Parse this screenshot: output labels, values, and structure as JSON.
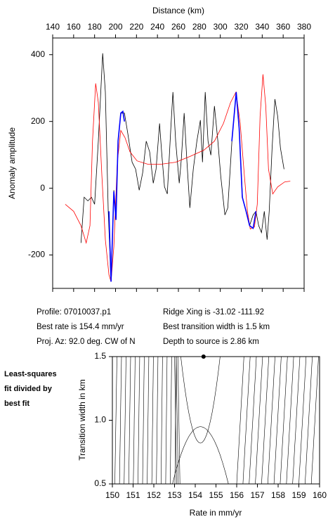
{
  "chart_data": [
    {
      "type": "line",
      "xlabel": "Distance (km)",
      "ylabel": "Anomaly amplitude",
      "xlim": [
        140,
        380
      ],
      "xticks": [
        140,
        160,
        180,
        200,
        220,
        240,
        260,
        280,
        300,
        320,
        340,
        360,
        380
      ],
      "ylim": [
        -300,
        450
      ],
      "yticks": [
        -200,
        0,
        200,
        400
      ],
      "series": [
        {
          "color": "#000000",
          "x": [
            167,
            170,
            173.6,
            177,
            180,
            183.6,
            187.7,
            190.3,
            193,
            195.7,
            198.4,
            200.4,
            202.4,
            205,
            208.5,
            211.8,
            215.8,
            219.2,
            222.6,
            225.9,
            229.3,
            232.6,
            236,
            238.7,
            242,
            244,
            246.7,
            249.4,
            252.8,
            254.8,
            257.4,
            260.8,
            262.8,
            265.5,
            268.2,
            270.9,
            274.2,
            277.6,
            281,
            283,
            285.6,
            288.3,
            291,
            294.4,
            297.7,
            300.4,
            304.4,
            307.1,
            311.1,
            315.2,
            317.9,
            321.2,
            324.6,
            327.9,
            331.3,
            334,
            336.6,
            339.3,
            342,
            344.7,
            346.7,
            349.4,
            352.1,
            354.8,
            357.4,
            360.8
          ],
          "values": [
            -164,
            -27,
            -38,
            -27,
            -48,
            141,
            404,
            288,
            -69,
            -280,
            -6,
            -90,
            141,
            225,
            225,
            162,
            78,
            57,
            -6,
            46,
            141,
            109,
            15,
            57,
            194,
            109,
            4,
            -17,
            183,
            288,
            141,
            15,
            88,
            225,
            78,
            -59,
            57,
            141,
            204,
            78,
            288,
            141,
            99,
            246,
            141,
            36,
            -80,
            -59,
            141,
            288,
            183,
            -27,
            -69,
            -112,
            -80,
            -69,
            -112,
            -133,
            -69,
            -154,
            -69,
            120,
            267,
            215,
            120,
            57
          ]
        },
        {
          "color": "#ff0000",
          "x": [
            152,
            160,
            167,
            172,
            175.6,
            178,
            181,
            183.6,
            187,
            190.3,
            193.7,
            195.7,
            198.4,
            201.7,
            205,
            209,
            213.8,
            220.5,
            230.6,
            244,
            257.4,
            270.9,
            284.3,
            294.4,
            303,
            309.8,
            315,
            319,
            323,
            325.9,
            328.6,
            332.6,
            335.3,
            338,
            340.7,
            343.4,
            346,
            350,
            354.8,
            361.5,
            366.8
          ],
          "values": [
            -48,
            -69,
            -112,
            -164,
            -112,
            141,
            314,
            257,
            36,
            -154,
            -259,
            -280,
            -175,
            78,
            173,
            152,
            109,
            82,
            72,
            72,
            78,
            95,
            114,
            141,
            194,
            257,
            288,
            194,
            36,
            -69,
            -122,
            -116,
            -48,
            215,
            341,
            246,
            57,
            -17,
            4,
            19,
            21
          ]
        },
        {
          "color": "#0000ff",
          "x": [
            193.7,
            195.7,
            198.4,
            200.4,
            202.4,
            205,
            207,
            208.5
          ],
          "values": [
            -69,
            -280,
            -10,
            -95,
            141,
            225,
            230,
            200
          ]
        },
        {
          "color": "#0000ff",
          "x": [
            311,
            315.2,
            318,
            321,
            324.6,
            328,
            331.3,
            334
          ],
          "values": [
            141,
            288,
            180,
            -27,
            -69,
            -112,
            -120,
            -69
          ]
        }
      ]
    },
    {
      "type": "contour",
      "xlabel": "Rate in mm/yr",
      "ylabel": "Transition width in km",
      "note_lines": [
        "Least-squares",
        "fit divided by",
        "best fit"
      ],
      "xlim": [
        150,
        160
      ],
      "xticks": [
        150,
        151,
        152,
        153,
        154,
        155,
        156,
        157,
        158,
        159,
        160
      ],
      "ylim": [
        0.5,
        1.5
      ],
      "yticks": [
        {
          "value": 0.5,
          "label": "0.5"
        },
        {
          "value": 1.0,
          "label": "1.0"
        },
        {
          "value": 1.5,
          "label": "1.5"
        }
      ],
      "best_point": {
        "x": 154.4,
        "y": 1.5
      }
    }
  ],
  "info": {
    "left": [
      "Profile: 07010037.p1",
      "Best rate is 154.4 mm/yr",
      "Proj. Az: 92.0 deg. CW of N"
    ],
    "right": [
      "Ridge Xing is -31.02 -111.92",
      "Best transition width is 1.5 km",
      "Depth to source is   2.86 km"
    ]
  }
}
